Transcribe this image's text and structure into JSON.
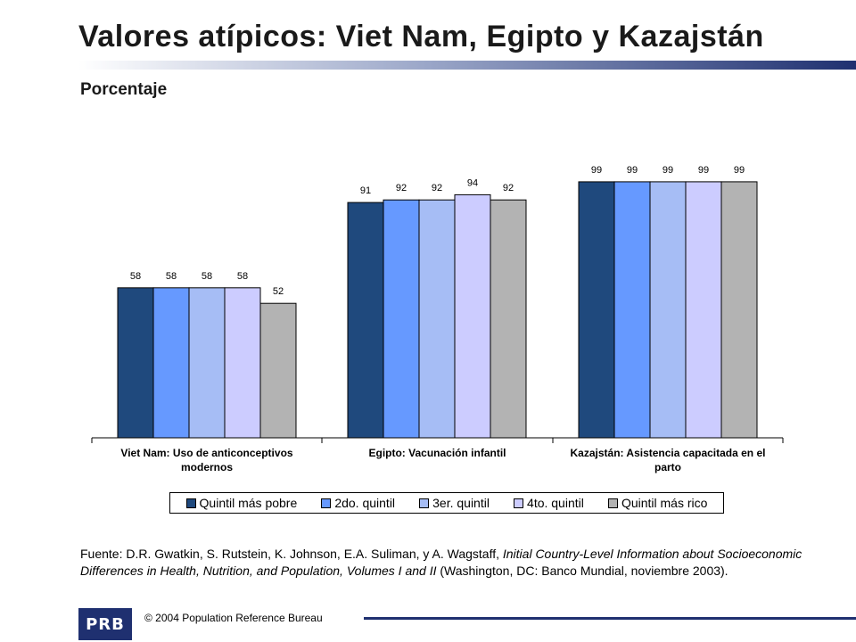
{
  "title": "Valores atípicos: Viet Nam, Egipto y Kazajstán",
  "subtitle": "Porcentaje",
  "chart_data": {
    "type": "bar",
    "categories": [
      "Viet Nam: Uso de anticonceptivos modernos",
      "Egipto: Vacunación infantil",
      "Kazajstán: Asistencia capacitada en el parto"
    ],
    "category_lines": [
      [
        "Viet Nam: Uso de anticonceptivos",
        "modernos"
      ],
      [
        "Egipto: Vacunación infantil"
      ],
      [
        "Kazajstán: Asistencia capacitada en el",
        "parto"
      ]
    ],
    "series": [
      {
        "name": "Quintil más pobre",
        "color": "#1f497d",
        "values": [
          58,
          91,
          99
        ]
      },
      {
        "name": "2do. quintil",
        "color": "#6699ff",
        "values": [
          58,
          92,
          99
        ]
      },
      {
        "name": "3er. quintil",
        "color": "#a6bdf5",
        "values": [
          58,
          92,
          99
        ]
      },
      {
        "name": "4to. quintil",
        "color": "#ccccff",
        "values": [
          58,
          94,
          99
        ]
      },
      {
        "name": "Quintil más rico",
        "color": "#b3b3b3",
        "values": [
          52,
          92,
          99
        ]
      }
    ],
    "ylim": [
      0,
      110
    ],
    "grid": false,
    "legend_position": "bottom"
  },
  "source": {
    "prefix": "Fuente: D.R. Gwatkin, S. Rutstein, K. Johnson, E.A. Suliman, y  A. Wagstaff, ",
    "italic": "Initial Country-Level Information about Socioeconomic Differences in Health, Nutrition, and Population, Volumes I and II",
    "suffix": " (Washington, DC: Banco Mundial, noviembre 2003)."
  },
  "footer": {
    "logo_text": "PRB",
    "copyright": "© 2004  Population Reference Bureau"
  }
}
